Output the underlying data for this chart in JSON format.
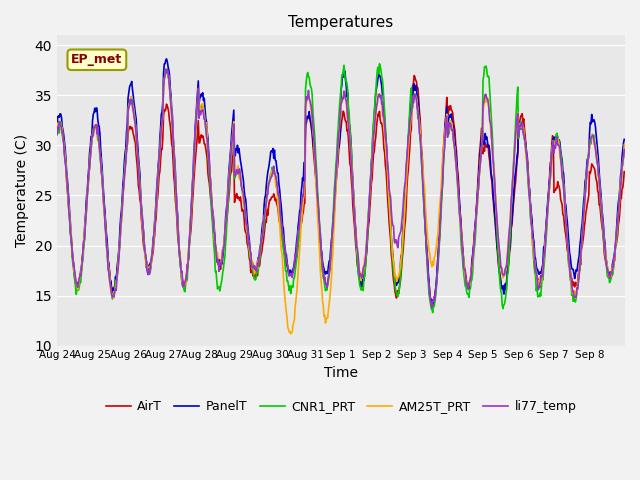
{
  "title": "Temperatures",
  "xlabel": "Time",
  "ylabel": "Temperature (C)",
  "ylim": [
    10,
    41
  ],
  "yticks": [
    10,
    15,
    20,
    25,
    30,
    35,
    40
  ],
  "annotation_text": "EP_met",
  "bg_color": "#e8e8e8",
  "fig_color": "#f2f2f2",
  "line_colors": {
    "AirT": "#cc0000",
    "PanelT": "#0000cc",
    "CNR1_PRT": "#00cc00",
    "AM25T_PRT": "#ffaa00",
    "li77_temp": "#9933cc"
  },
  "line_width": 1.2,
  "xtick_labels": [
    "Aug 24",
    "Aug 25",
    "Aug 26",
    "Aug 27",
    "Aug 28",
    "Aug 29",
    "Aug 30",
    "Aug 31",
    "Sep 1",
    "Sep 2",
    "Sep 3",
    "Sep 4",
    "Sep 5",
    "Sep 6",
    "Sep 7",
    "Sep 8"
  ],
  "n_days": 16,
  "pts_per_day": 48,
  "daily_peaks": {
    "AirT": [
      32,
      32,
      32,
      34,
      31,
      25,
      25,
      33,
      33,
      33,
      37,
      34,
      30,
      33,
      26,
      28
    ],
    "PanelT": [
      33,
      33.5,
      36,
      38.5,
      35,
      29.5,
      29.5,
      33,
      37,
      37,
      36,
      33,
      31,
      32,
      31,
      32.5
    ],
    "CNR1_PRT": [
      32,
      32,
      34.5,
      37.5,
      34,
      27.5,
      27.5,
      37,
      37.5,
      38,
      35,
      32,
      38,
      32,
      31,
      31
    ],
    "AM25T_PRT": [
      32,
      32,
      34.5,
      37.5,
      34,
      27.5,
      27.5,
      35,
      35,
      35,
      35,
      32,
      35,
      32,
      30.5,
      31
    ],
    "li77_temp": [
      32,
      32,
      34.5,
      37.5,
      33.5,
      27.5,
      27.5,
      35,
      35,
      35,
      35,
      32,
      35,
      32,
      30.5,
      31
    ]
  },
  "daily_mins": {
    "AirT": [
      16,
      15.5,
      17.5,
      16,
      18,
      17,
      17,
      16,
      16,
      15,
      14,
      16,
      15.5,
      16,
      16,
      17
    ],
    "PanelT": [
      16,
      15.5,
      17.5,
      16,
      18,
      17.5,
      17,
      17,
      16,
      16,
      14,
      16,
      15.5,
      17,
      17,
      17
    ],
    "CNR1_PRT": [
      15.5,
      15,
      17.5,
      15.5,
      15.5,
      17,
      15.5,
      15.5,
      15.5,
      15,
      13.5,
      15,
      14,
      15,
      14.5,
      16.5
    ],
    "AM25T_PRT": [
      16,
      15,
      17.5,
      16,
      18,
      17.5,
      11,
      12.5,
      17,
      16.5,
      18,
      16,
      17,
      16,
      15,
      17
    ],
    "li77_temp": [
      16,
      15,
      17.5,
      16,
      18,
      17.5,
      17,
      16,
      17,
      20,
      14,
      16,
      17,
      16,
      15,
      17
    ]
  }
}
